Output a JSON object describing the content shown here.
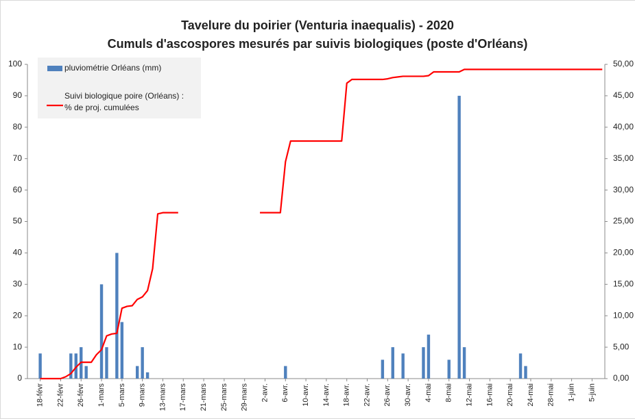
{
  "chart_data": {
    "type": "bar_line",
    "title": "Tavelure du poirier (Venturia inaequalis) - 2020",
    "subtitle": "Cumuls d'ascospores mesurés par suivis biologiques (poste d'Orléans)",
    "categories": [
      null,
      null,
      "18-févr",
      null,
      null,
      null,
      "22-févr",
      null,
      null,
      null,
      "26-févr",
      null,
      null,
      null,
      "1-mars",
      null,
      null,
      null,
      "5-mars",
      null,
      null,
      null,
      "9-mars",
      null,
      null,
      null,
      "13-mars",
      null,
      null,
      null,
      "17-mars",
      null,
      null,
      null,
      "21-mars",
      null,
      null,
      null,
      "25-mars",
      null,
      null,
      null,
      "29-mars",
      null,
      null,
      null,
      "2-avr.",
      null,
      null,
      null,
      "6-avr.",
      null,
      null,
      null,
      "10-avr.",
      null,
      null,
      null,
      "14-avr.",
      null,
      null,
      null,
      "18-avr.",
      null,
      null,
      null,
      "22-avr.",
      null,
      null,
      null,
      "26-avr.",
      null,
      null,
      null,
      "30-avr.",
      null,
      null,
      null,
      "4-mai",
      null,
      null,
      null,
      "8-mai",
      null,
      null,
      null,
      "12-mai",
      null,
      null,
      null,
      "16-mai",
      null,
      null,
      null,
      "20-mai",
      null,
      null,
      null,
      "24-mai",
      null,
      null,
      null,
      "28-mai",
      null,
      null,
      null,
      "1-juin",
      null,
      null,
      null,
      "5-juin",
      null,
      null
    ],
    "series": [
      {
        "name": "pluviométrie Orléans (mm)",
        "color": "#4f81bd",
        "kind": "bar",
        "values": [
          0,
          0,
          8,
          0,
          0,
          0,
          0,
          0,
          8,
          8,
          10,
          4,
          0,
          0,
          30,
          10,
          0,
          40,
          18,
          0,
          0,
          4,
          10,
          2,
          0,
          0,
          0,
          0,
          0,
          0,
          0,
          0,
          0,
          0,
          0,
          0,
          0,
          0,
          0,
          0,
          0,
          0,
          0,
          0,
          0,
          0,
          0,
          0,
          0,
          0,
          4,
          0,
          0,
          0,
          0,
          0,
          0,
          0,
          0,
          0,
          0,
          0,
          0,
          0,
          0,
          0,
          0,
          0,
          0,
          6,
          0,
          10,
          0,
          8,
          0,
          0,
          0,
          10,
          14,
          0,
          0,
          0,
          6,
          0,
          90,
          10,
          0,
          0,
          0,
          0,
          0,
          0,
          0,
          0,
          0,
          0,
          8,
          4,
          0,
          0,
          0,
          0,
          0,
          0,
          0,
          0,
          0,
          0,
          0,
          0,
          0,
          0,
          0
        ]
      },
      {
        "name": "Suivi biologique poire (Orléans) :\n% de proj. cumulées",
        "color": "#ff0000",
        "kind": "line",
        "axis": "y2",
        "values": [
          null,
          null,
          0,
          0,
          0,
          0,
          0,
          0.3,
          0.8,
          1.8,
          2.6,
          2.6,
          2.6,
          3.8,
          4.6,
          6.8,
          7.1,
          7.2,
          11.2,
          11.5,
          11.6,
          12.6,
          13,
          14,
          17.5,
          26.2,
          26.4,
          26.4,
          26.4,
          26.4,
          null,
          null,
          null,
          null,
          null,
          null,
          null,
          null,
          null,
          null,
          null,
          null,
          null,
          null,
          null,
          26.4,
          26.4,
          26.4,
          26.4,
          26.4,
          34.5,
          37.8,
          37.8,
          37.8,
          37.8,
          37.8,
          37.8,
          37.8,
          37.8,
          37.8,
          37.8,
          37.8,
          47,
          47.6,
          47.6,
          47.6,
          47.6,
          47.6,
          47.6,
          47.6,
          47.7,
          47.9,
          48,
          48.1,
          48.1,
          48.1,
          48.1,
          48.1,
          48.2,
          48.8,
          48.8,
          48.8,
          48.8,
          48.8,
          48.8,
          49.2,
          49.2,
          49.2,
          49.2,
          49.2,
          49.2,
          49.2,
          49.2,
          49.2,
          49.2,
          49.2,
          49.2,
          49.2,
          49.2,
          49.2,
          49.2,
          49.2,
          49.2,
          49.2,
          49.2,
          49.2,
          49.2,
          49.2,
          49.2,
          49.2,
          49.2,
          49.2,
          49.2
        ]
      }
    ],
    "ylim": [
      0,
      100
    ],
    "yticks": [
      0,
      10,
      20,
      30,
      40,
      50,
      60,
      70,
      80,
      90,
      100
    ],
    "y2lim": [
      0,
      50
    ],
    "y2ticks": [
      {
        "value": 0,
        "label": "0,00"
      },
      {
        "value": 5,
        "label": "5,00"
      },
      {
        "value": 10,
        "label": "10,00"
      },
      {
        "value": 15,
        "label": "15,00"
      },
      {
        "value": 20,
        "label": "20,00"
      },
      {
        "value": 25,
        "label": "25,00"
      },
      {
        "value": 30,
        "label": "30,00"
      },
      {
        "value": 35,
        "label": "35,00"
      },
      {
        "value": 40,
        "label": "40,00"
      },
      {
        "value": 45,
        "label": "45,00"
      },
      {
        "value": 50,
        "label": "50,00"
      }
    ],
    "legend": "top-left",
    "grid": false
  }
}
